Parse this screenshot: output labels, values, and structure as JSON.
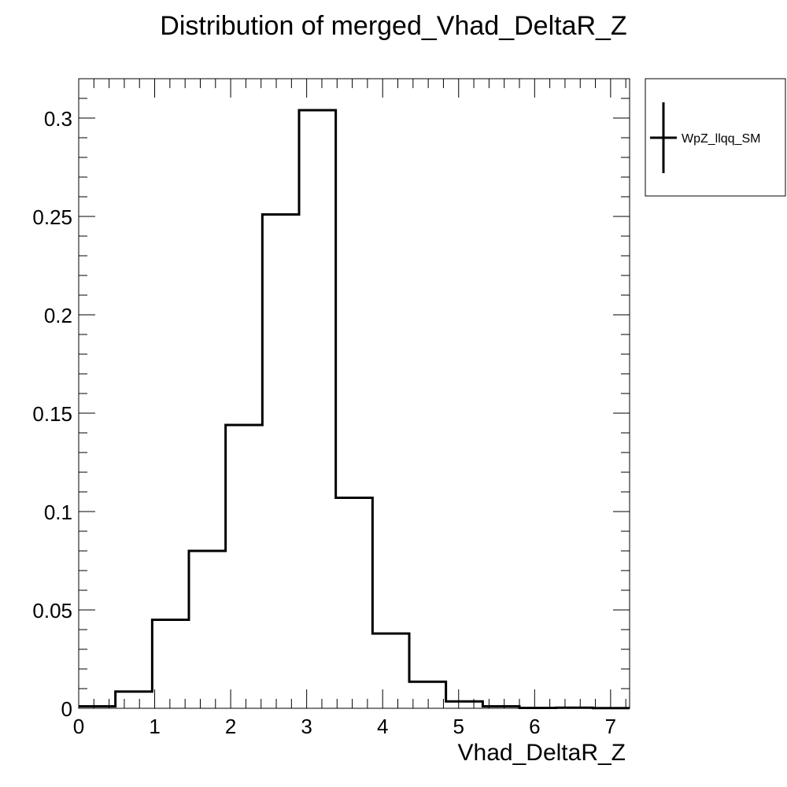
{
  "chart_data": {
    "type": "histogram",
    "title": "Distribution of merged_Vhad_DeltaR_Z",
    "xlabel": "Vhad_DeltaR_Z",
    "ylabel": "",
    "xlim": [
      0,
      7.25
    ],
    "ylim": [
      0,
      0.32
    ],
    "bin_edges": [
      0,
      0.483,
      0.967,
      1.45,
      1.933,
      2.417,
      2.9,
      3.383,
      3.867,
      4.35,
      4.833,
      5.317,
      5.8,
      6.283,
      6.767,
      7.25
    ],
    "x_ticks": [
      "0",
      "1",
      "2",
      "3",
      "4",
      "5",
      "6",
      "7"
    ],
    "y_ticks": [
      "0",
      "0.05",
      "0.1",
      "0.15",
      "0.2",
      "0.25",
      "0.3"
    ],
    "grid": false,
    "legend_position": "right",
    "series": [
      {
        "name": "WpZ_llqq_SM",
        "color": "#000000",
        "values": [
          0.001,
          0.0085,
          0.045,
          0.08,
          0.144,
          0.251,
          0.304,
          0.107,
          0.038,
          0.0135,
          0.0035,
          0.001,
          0.0002,
          0.0003,
          0.0001
        ]
      }
    ]
  }
}
